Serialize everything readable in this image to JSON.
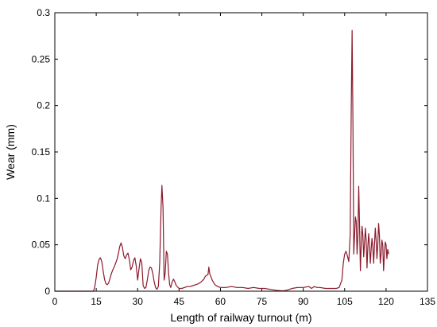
{
  "chart_data": {
    "type": "line",
    "title": "",
    "xlabel": "Length of railway turnout (m)",
    "ylabel": "Wear (mm)",
    "xlim": [
      0,
      135
    ],
    "ylim": [
      0,
      0.3
    ],
    "xticks": [
      0,
      15,
      30,
      45,
      60,
      75,
      90,
      105,
      120,
      135
    ],
    "yticks": [
      0,
      0.05,
      0.1,
      0.15,
      0.2,
      0.25,
      0.3
    ],
    "ytick_labels": [
      "0",
      "0.05",
      "0.1",
      "0.15",
      "0.2",
      "0.25",
      "0.3"
    ],
    "grid": false,
    "legend": "none",
    "line_color": "#8b1a2b",
    "series": [
      {
        "points": [
          [
            0,
            0
          ],
          [
            14,
            0
          ],
          [
            14.5,
            0.005
          ],
          [
            15,
            0.015
          ],
          [
            15.5,
            0.028
          ],
          [
            16,
            0.034
          ],
          [
            16.5,
            0.036
          ],
          [
            17,
            0.032
          ],
          [
            17.5,
            0.022
          ],
          [
            18,
            0.013
          ],
          [
            18.5,
            0.008
          ],
          [
            19,
            0.007
          ],
          [
            19.5,
            0.009
          ],
          [
            20,
            0.014
          ],
          [
            20.5,
            0.019
          ],
          [
            21,
            0.023
          ],
          [
            21.5,
            0.026
          ],
          [
            22,
            0.03
          ],
          [
            22.5,
            0.034
          ],
          [
            23,
            0.04
          ],
          [
            23.5,
            0.048
          ],
          [
            24,
            0.052
          ],
          [
            24.5,
            0.047
          ],
          [
            25,
            0.038
          ],
          [
            25.5,
            0.035
          ],
          [
            26,
            0.039
          ],
          [
            26.5,
            0.041
          ],
          [
            27,
            0.034
          ],
          [
            27.5,
            0.023
          ],
          [
            28,
            0.026
          ],
          [
            28.5,
            0.033
          ],
          [
            29,
            0.036
          ],
          [
            29.5,
            0.027
          ],
          [
            30,
            0.012
          ],
          [
            30.5,
            0.024
          ],
          [
            31,
            0.035
          ],
          [
            31.5,
            0.031
          ],
          [
            32,
            0.006
          ],
          [
            32.5,
            0.003
          ],
          [
            33,
            0.004
          ],
          [
            33.5,
            0.012
          ],
          [
            34,
            0.022
          ],
          [
            34.5,
            0.026
          ],
          [
            35,
            0.025
          ],
          [
            35.5,
            0.019
          ],
          [
            36,
            0.01
          ],
          [
            36.5,
            0.004
          ],
          [
            37,
            0.002
          ],
          [
            37.5,
            0.005
          ],
          [
            38,
            0.03
          ],
          [
            38.5,
            0.09
          ],
          [
            38.8,
            0.114
          ],
          [
            39.2,
            0.09
          ],
          [
            39.6,
            0.012
          ],
          [
            40,
            0.02
          ],
          [
            40.4,
            0.043
          ],
          [
            40.8,
            0.04
          ],
          [
            41.2,
            0.02
          ],
          [
            41.6,
            0.007
          ],
          [
            42,
            0.004
          ],
          [
            42.5,
            0.01
          ],
          [
            43,
            0.013
          ],
          [
            43.5,
            0.01
          ],
          [
            44,
            0.006
          ],
          [
            45,
            0.003
          ],
          [
            46,
            0.003
          ],
          [
            47,
            0.004
          ],
          [
            48,
            0.005
          ],
          [
            49,
            0.005
          ],
          [
            50,
            0.006
          ],
          [
            51,
            0.007
          ],
          [
            52,
            0.008
          ],
          [
            53,
            0.01
          ],
          [
            54,
            0.013
          ],
          [
            54.5,
            0.016
          ],
          [
            55,
            0.017
          ],
          [
            55.5,
            0.018
          ],
          [
            55.8,
            0.026
          ],
          [
            56.1,
            0.019
          ],
          [
            56.5,
            0.016
          ],
          [
            57,
            0.012
          ],
          [
            58,
            0.007
          ],
          [
            59,
            0.005
          ],
          [
            60,
            0.004
          ],
          [
            62,
            0.004
          ],
          [
            64,
            0.005
          ],
          [
            66,
            0.004
          ],
          [
            68,
            0.004
          ],
          [
            70,
            0.003
          ],
          [
            72,
            0.004
          ],
          [
            74,
            0.003
          ],
          [
            76,
            0.003
          ],
          [
            78,
            0.002
          ],
          [
            80,
            0.001
          ],
          [
            82,
            0.0005
          ],
          [
            83,
            0.0005
          ],
          [
            84,
            0.001
          ],
          [
            85,
            0.002
          ],
          [
            86,
            0.003
          ],
          [
            88,
            0.004
          ],
          [
            90,
            0.004
          ],
          [
            92,
            0.005
          ],
          [
            93,
            0.003
          ],
          [
            94,
            0.005
          ],
          [
            95,
            0.004
          ],
          [
            96,
            0.004
          ],
          [
            98,
            0.003
          ],
          [
            100,
            0.003
          ],
          [
            101,
            0.003
          ],
          [
            102,
            0.003
          ],
          [
            103,
            0.004
          ],
          [
            104,
            0.012
          ],
          [
            104.5,
            0.03
          ],
          [
            105,
            0.04
          ],
          [
            105.5,
            0.043
          ],
          [
            106,
            0.038
          ],
          [
            106.5,
            0.032
          ],
          [
            107,
            0.06
          ],
          [
            107.4,
            0.2
          ],
          [
            107.7,
            0.281
          ],
          [
            108,
            0.18
          ],
          [
            108.3,
            0.04
          ],
          [
            108.6,
            0.06
          ],
          [
            108.9,
            0.08
          ],
          [
            109.2,
            0.075
          ],
          [
            109.5,
            0.04
          ],
          [
            109.8,
            0.06
          ],
          [
            110.1,
            0.113
          ],
          [
            110.4,
            0.07
          ],
          [
            110.7,
            0.022
          ],
          [
            111,
            0.05
          ],
          [
            111.3,
            0.07
          ],
          [
            111.6,
            0.06
          ],
          [
            111.9,
            0.037
          ],
          [
            112.2,
            0.052
          ],
          [
            112.5,
            0.068
          ],
          [
            112.8,
            0.055
          ],
          [
            113.1,
            0.025
          ],
          [
            113.4,
            0.048
          ],
          [
            113.7,
            0.062
          ],
          [
            114,
            0.05
          ],
          [
            114.3,
            0.03
          ],
          [
            114.6,
            0.045
          ],
          [
            114.9,
            0.057
          ],
          [
            115.2,
            0.048
          ],
          [
            115.5,
            0.03
          ],
          [
            115.8,
            0.05
          ],
          [
            116.1,
            0.068
          ],
          [
            116.4,
            0.055
          ],
          [
            116.7,
            0.035
          ],
          [
            117,
            0.05
          ],
          [
            117.3,
            0.073
          ],
          [
            117.6,
            0.06
          ],
          [
            117.9,
            0.03
          ],
          [
            118.2,
            0.04
          ],
          [
            118.5,
            0.055
          ],
          [
            118.8,
            0.05
          ],
          [
            119.1,
            0.022
          ],
          [
            119.4,
            0.04
          ],
          [
            119.7,
            0.053
          ],
          [
            120,
            0.05
          ],
          [
            120.3,
            0.035
          ],
          [
            120.6,
            0.045
          ],
          [
            121,
            0.04
          ]
        ]
      }
    ]
  }
}
